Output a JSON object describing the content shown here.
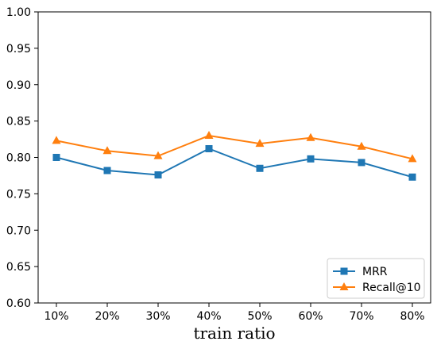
{
  "chart_data": {
    "type": "line",
    "categories": [
      "10%",
      "20%",
      "30%",
      "40%",
      "50%",
      "60%",
      "70%",
      "80%"
    ],
    "series": [
      {
        "name": "MRR",
        "color": "#1f77b4",
        "marker": "square",
        "values": [
          0.8,
          0.782,
          0.776,
          0.812,
          0.785,
          0.798,
          0.793,
          0.773
        ]
      },
      {
        "name": "Recall@10",
        "color": "#ff7f0e",
        "marker": "triangle-up",
        "values": [
          0.823,
          0.809,
          0.802,
          0.83,
          0.819,
          0.827,
          0.815,
          0.798
        ]
      }
    ],
    "title": "",
    "xlabel": "train ratio",
    "ylabel": "",
    "ylim": [
      0.6,
      1.0
    ],
    "yticks": [
      "0.60",
      "0.65",
      "0.70",
      "0.75",
      "0.80",
      "0.85",
      "0.90",
      "0.95",
      "1.00"
    ],
    "grid": false,
    "legend_position": "bottom-right"
  }
}
